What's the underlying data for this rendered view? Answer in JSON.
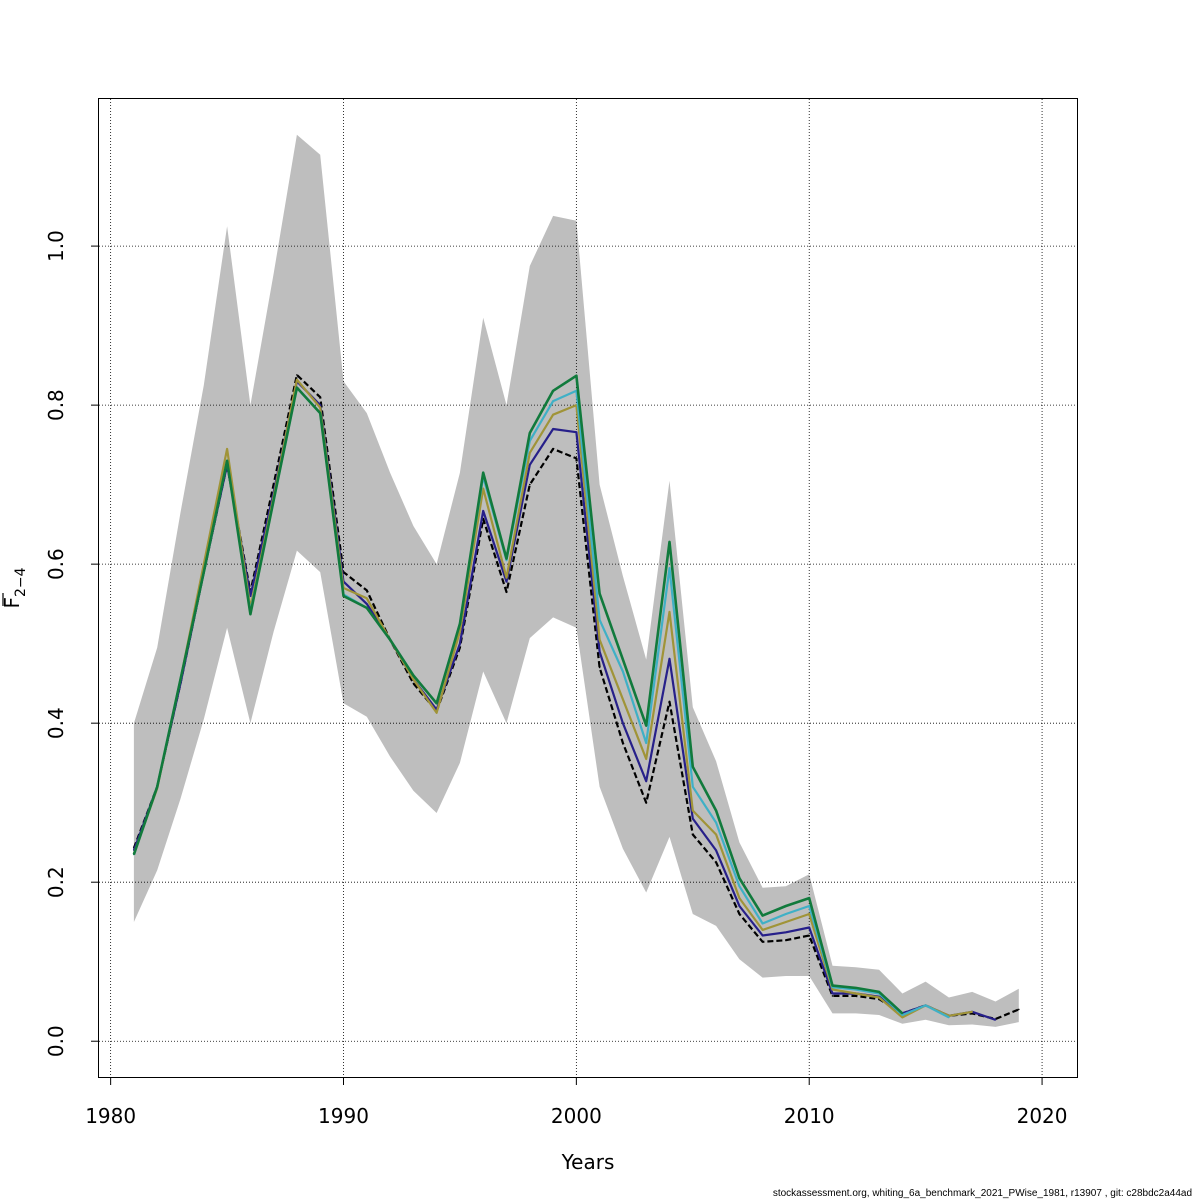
{
  "chart_data": {
    "type": "line",
    "xlabel": "Years",
    "ylabel_base": "F",
    "ylabel_sub": "2−4",
    "xlim": [
      1979.5,
      2021.5
    ],
    "ylim": [
      -0.045,
      1.185
    ],
    "x_ticks": [
      1980,
      1990,
      2000,
      2010,
      2020
    ],
    "x_tick_labels": [
      "1980",
      "1990",
      "2000",
      "2010",
      "2020"
    ],
    "y_ticks": [
      0.0,
      0.2,
      0.4,
      0.6,
      0.8,
      1.0
    ],
    "y_tick_labels": [
      "0.0",
      "0.2",
      "0.4",
      "0.6",
      "0.8",
      "1.0"
    ],
    "grid": true,
    "confidence_band": {
      "color": "#bebebe",
      "x": [
        1981,
        1982,
        1983,
        1984,
        1985,
        1986,
        1987,
        1988,
        1989,
        1990,
        1991,
        1992,
        1993,
        1994,
        1995,
        1996,
        1997,
        1998,
        1999,
        2000,
        2001,
        2002,
        2003,
        2004,
        2005,
        2006,
        2007,
        2008,
        2009,
        2010,
        2011,
        2012,
        2013,
        2014,
        2015,
        2016,
        2017,
        2018,
        2019
      ],
      "lower": [
        0.15,
        0.215,
        0.305,
        0.405,
        0.52,
        0.4,
        0.515,
        0.617,
        0.59,
        0.425,
        0.408,
        0.358,
        0.315,
        0.287,
        0.35,
        0.465,
        0.4,
        0.507,
        0.533,
        0.52,
        0.32,
        0.242,
        0.187,
        0.257,
        0.16,
        0.145,
        0.103,
        0.08,
        0.082,
        0.082,
        0.035,
        0.035,
        0.033,
        0.022,
        0.027,
        0.02,
        0.021,
        0.018,
        0.024
      ],
      "upper": [
        0.4,
        0.495,
        0.665,
        0.825,
        1.025,
        0.8,
        0.965,
        1.14,
        1.115,
        0.83,
        0.79,
        0.715,
        0.648,
        0.6,
        0.715,
        0.91,
        0.8,
        0.975,
        1.038,
        1.032,
        0.7,
        0.585,
        0.48,
        0.705,
        0.42,
        0.352,
        0.25,
        0.193,
        0.195,
        0.21,
        0.095,
        0.093,
        0.09,
        0.06,
        0.075,
        0.055,
        0.062,
        0.05,
        0.066
      ]
    },
    "series": [
      {
        "color": "#000000",
        "width": 2.2,
        "dash": "6 3",
        "x": [
          1981,
          1982,
          1983,
          1984,
          1985,
          1986,
          1987,
          1988,
          1989,
          1990,
          1991,
          1992,
          1993,
          1994,
          1995,
          1996,
          1997,
          1998,
          1999,
          2000,
          2001,
          2002,
          2003,
          2004,
          2005,
          2006,
          2007,
          2008,
          2009,
          2010,
          2011,
          2012,
          2013,
          2014,
          2015,
          2016,
          2017,
          2018,
          2019
        ],
        "values": [
          0.243,
          0.32,
          0.45,
          0.59,
          0.725,
          0.565,
          0.7,
          0.838,
          0.81,
          0.59,
          0.567,
          0.505,
          0.45,
          0.415,
          0.495,
          0.657,
          0.565,
          0.7,
          0.745,
          0.733,
          0.47,
          0.375,
          0.3,
          0.427,
          0.26,
          0.225,
          0.16,
          0.125,
          0.127,
          0.133,
          0.057,
          0.057,
          0.053,
          0.035,
          0.045,
          0.032,
          0.035,
          0.028,
          0.04
        ]
      },
      {
        "color": "#27208a",
        "width": 2.2,
        "dash": "",
        "x": [
          1981,
          1982,
          1983,
          1984,
          1985,
          1986,
          1987,
          1988,
          1989,
          1990,
          1991,
          1992,
          1993,
          1994,
          1995,
          1996,
          1997,
          1998,
          1999,
          2000,
          2001,
          2002,
          2003,
          2004,
          2005,
          2006,
          2007,
          2008,
          2009,
          2010,
          2011,
          2012,
          2013,
          2014,
          2015,
          2016,
          2017,
          2018
        ],
        "values": [
          0.24,
          0.32,
          0.45,
          0.59,
          0.725,
          0.56,
          0.69,
          0.83,
          0.8,
          0.578,
          0.55,
          0.505,
          0.455,
          0.417,
          0.5,
          0.667,
          0.578,
          0.725,
          0.77,
          0.766,
          0.49,
          0.4,
          0.327,
          0.481,
          0.28,
          0.24,
          0.17,
          0.133,
          0.137,
          0.143,
          0.06,
          0.06,
          0.056,
          0.035,
          0.045,
          0.032,
          0.037,
          0.027
        ]
      },
      {
        "color": "#a09438",
        "width": 2.2,
        "dash": "",
        "x": [
          1981,
          1982,
          1983,
          1984,
          1985,
          1986,
          1987,
          1988,
          1989,
          1990,
          1991,
          1992,
          1993,
          1994,
          1995,
          1996,
          1997,
          1998,
          1999,
          2000,
          2001,
          2002,
          2003,
          2004,
          2005,
          2006,
          2007,
          2008,
          2009,
          2010,
          2011,
          2012,
          2013,
          2014,
          2015,
          2016,
          2017
        ],
        "values": [
          0.236,
          0.318,
          0.455,
          0.6,
          0.745,
          0.545,
          0.685,
          0.832,
          0.797,
          0.57,
          0.557,
          0.505,
          0.455,
          0.413,
          0.515,
          0.695,
          0.583,
          0.74,
          0.788,
          0.8,
          0.505,
          0.43,
          0.355,
          0.54,
          0.29,
          0.26,
          0.18,
          0.14,
          0.15,
          0.16,
          0.065,
          0.06,
          0.055,
          0.03,
          0.045,
          0.032,
          0.037
        ]
      },
      {
        "color": "#3fb0c6",
        "width": 2.2,
        "dash": "",
        "x": [
          1981,
          1982,
          1983,
          1984,
          1985,
          1986,
          1987,
          1988,
          1989,
          1990,
          1991,
          1992,
          1993,
          1994,
          1995,
          1996,
          1997,
          1998,
          1999,
          2000,
          2001,
          2002,
          2003,
          2004,
          2005,
          2006,
          2007,
          2008,
          2009,
          2010,
          2011,
          2012,
          2013,
          2014,
          2015,
          2016
        ],
        "values": [
          0.235,
          0.32,
          0.455,
          0.59,
          0.73,
          0.54,
          0.68,
          0.822,
          0.79,
          0.562,
          0.545,
          0.505,
          0.46,
          0.425,
          0.525,
          0.71,
          0.605,
          0.755,
          0.805,
          0.818,
          0.53,
          0.465,
          0.375,
          0.595,
          0.32,
          0.275,
          0.195,
          0.148,
          0.16,
          0.17,
          0.068,
          0.065,
          0.06,
          0.033,
          0.045,
          0.03
        ]
      },
      {
        "color": "#117a3c",
        "width": 2.6,
        "dash": "",
        "x": [
          1981,
          1982,
          1983,
          1984,
          1985,
          1986,
          1987,
          1988,
          1989,
          1990,
          1991,
          1992,
          1993,
          1994,
          1995,
          1996,
          1997,
          1998,
          1999,
          2000,
          2001,
          2002,
          2003,
          2004,
          2005,
          2006,
          2007,
          2008,
          2009,
          2010,
          2011,
          2012,
          2013,
          2014
        ],
        "values": [
          0.235,
          0.32,
          0.455,
          0.59,
          0.73,
          0.537,
          0.68,
          0.822,
          0.79,
          0.56,
          0.545,
          0.505,
          0.46,
          0.425,
          0.525,
          0.715,
          0.607,
          0.765,
          0.818,
          0.837,
          0.563,
          0.48,
          0.397,
          0.628,
          0.345,
          0.29,
          0.205,
          0.158,
          0.17,
          0.18,
          0.07,
          0.067,
          0.062,
          0.035
        ]
      }
    ]
  },
  "footer": {
    "text": "stockassessment.org, whiting_6a_benchmark_2021_PWise_1981, r13907 , git: c28bdc2a44ad"
  }
}
